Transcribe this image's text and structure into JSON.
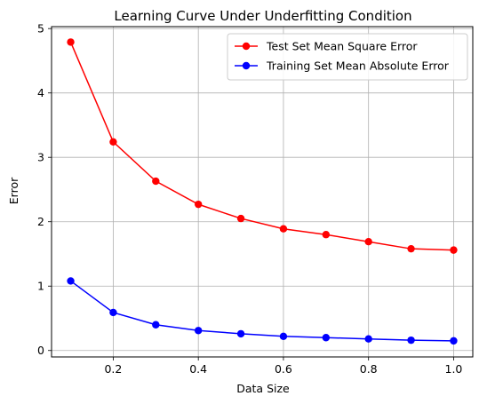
{
  "chart_data": {
    "type": "line",
    "title": "Learning Curve Under Underfitting Condition",
    "xlabel": "Data Size",
    "ylabel": "Error",
    "xlim": [
      0.055,
      1.045
    ],
    "ylim": [
      -0.1,
      5.03
    ],
    "x_ticks": [
      0.2,
      0.4,
      0.6,
      0.8,
      1.0
    ],
    "x_tick_labels": [
      "0.2",
      "0.4",
      "0.6",
      "0.8",
      "1.0"
    ],
    "y_ticks": [
      0,
      1,
      2,
      3,
      4,
      5
    ],
    "y_tick_labels": [
      "0",
      "1",
      "2",
      "3",
      "4",
      "5"
    ],
    "grid": true,
    "legend_position": "top-right",
    "x": [
      0.1,
      0.2,
      0.3,
      0.4,
      0.5,
      0.6,
      0.7,
      0.8,
      0.9,
      1.0
    ],
    "series": [
      {
        "name": "Test Set Mean Square Error",
        "color": "#ff0000",
        "marker": "circle",
        "values": [
          4.79,
          3.24,
          2.63,
          2.27,
          2.05,
          1.89,
          1.8,
          1.69,
          1.58,
          1.56
        ]
      },
      {
        "name": "Training Set Mean Absolute Error",
        "color": "#0000ff",
        "marker": "circle",
        "values": [
          1.08,
          0.59,
          0.4,
          0.31,
          0.26,
          0.22,
          0.2,
          0.18,
          0.16,
          0.15
        ]
      }
    ]
  }
}
